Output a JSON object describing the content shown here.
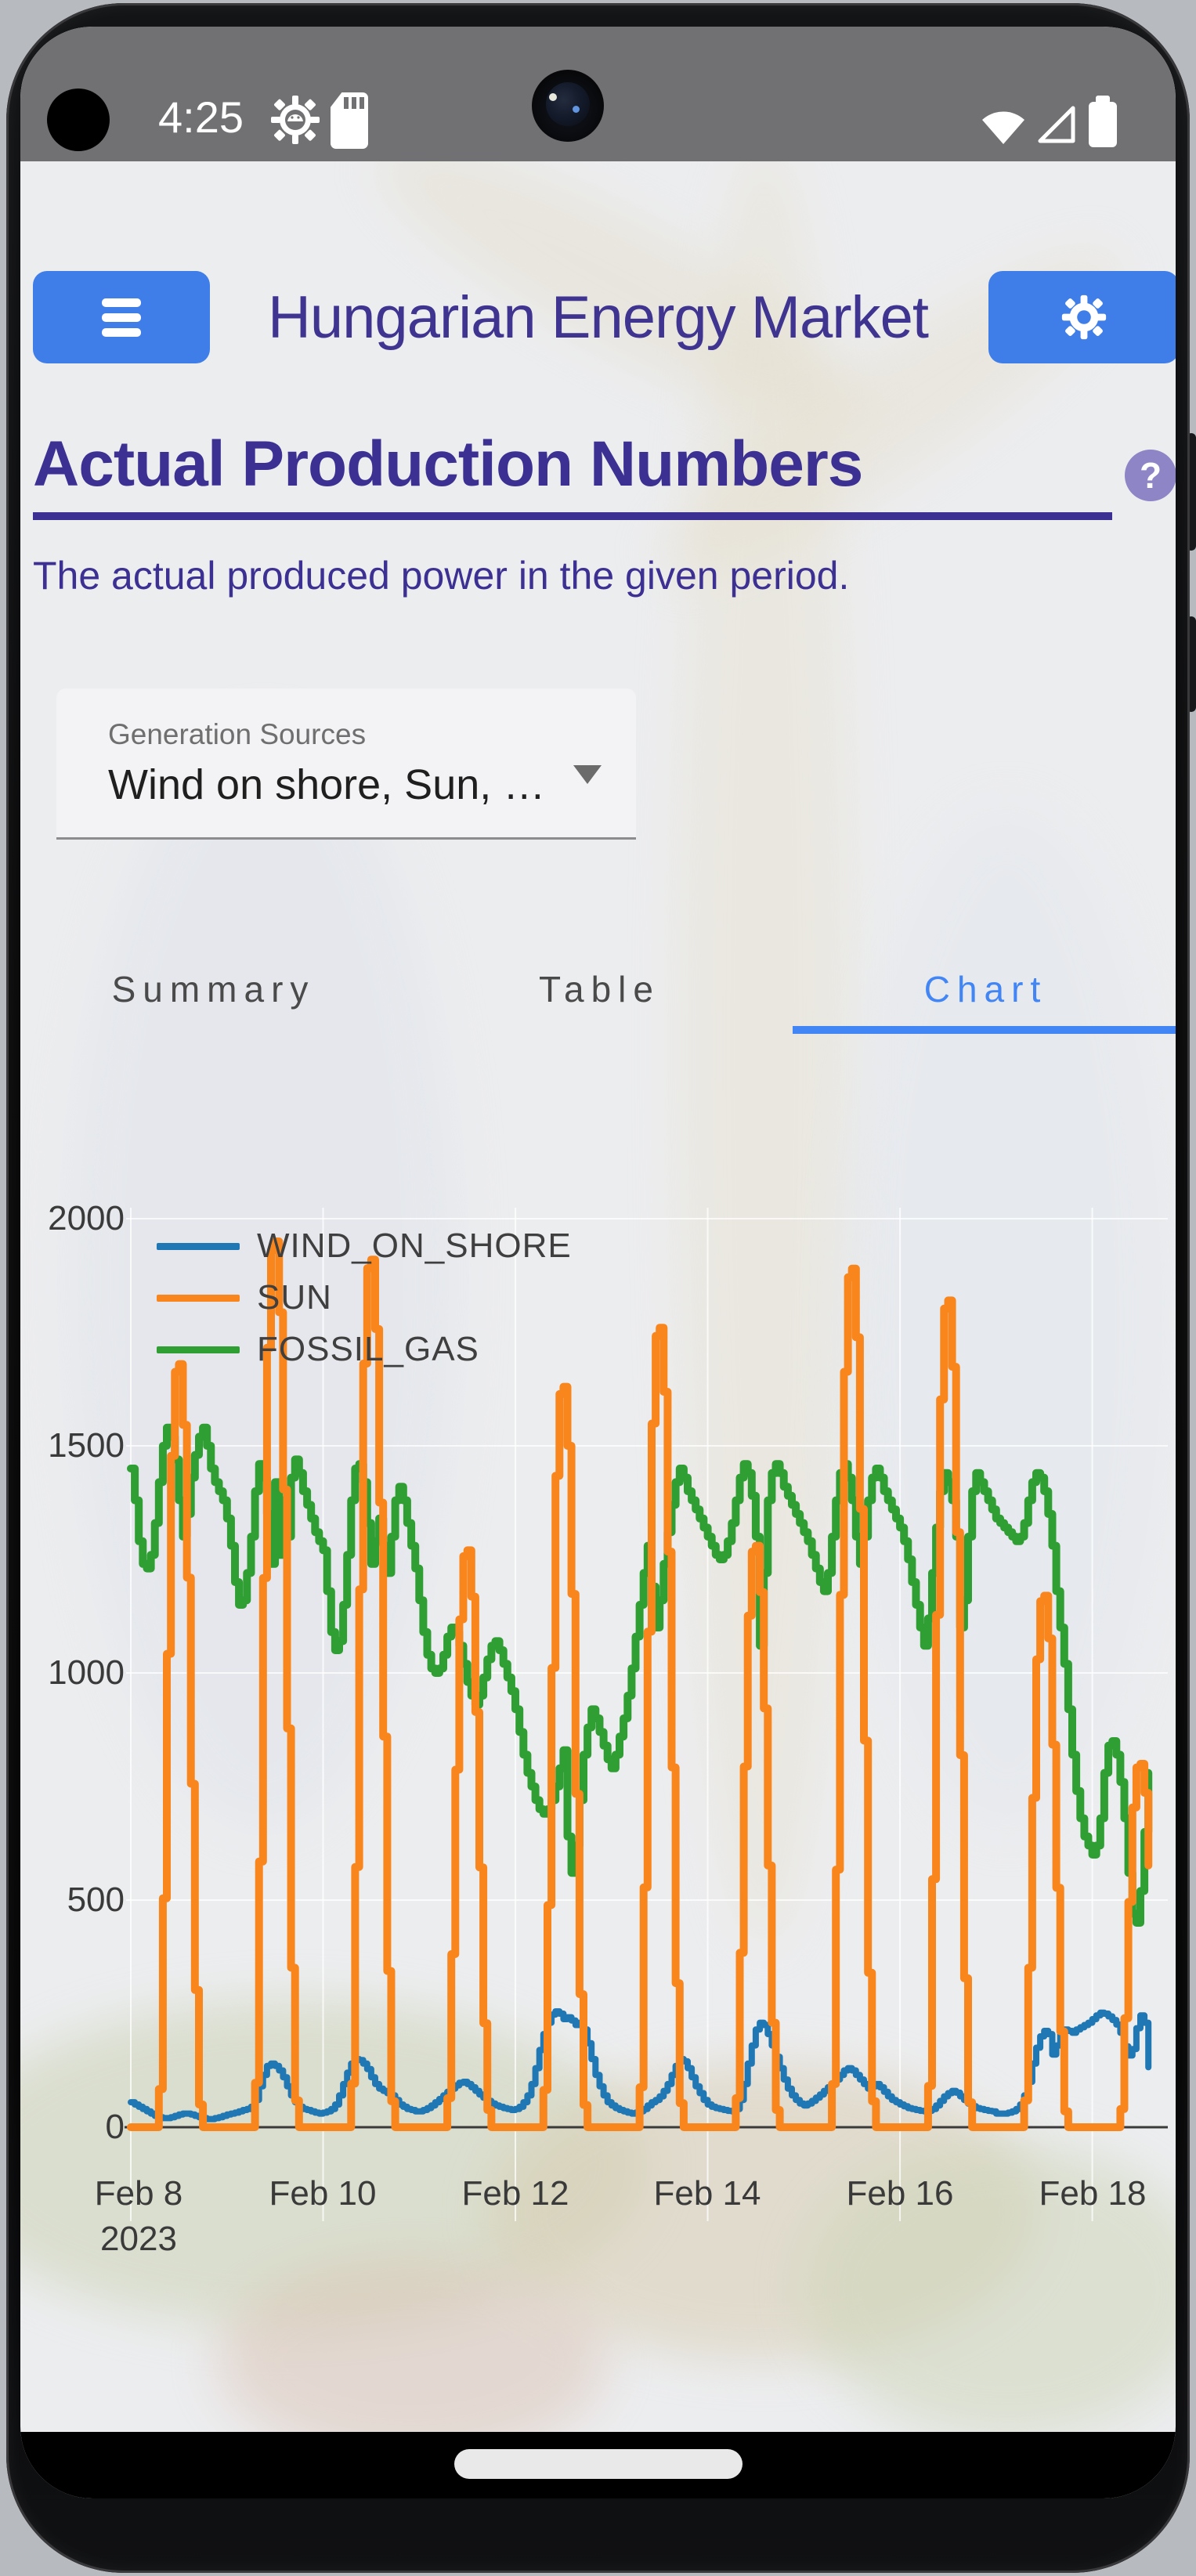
{
  "theme": {
    "button_blue": "#3F7EE8",
    "title_purple": "#3F3490",
    "heading_purple": "#3C3092",
    "tab_active": "#4285F4",
    "tab_inactive": "#4A4A4A",
    "help_badge": "#8D85C5",
    "status_bar": "#717173"
  },
  "status_bar": {
    "time": "4:25"
  },
  "header": {
    "title": "Hungarian Energy Market"
  },
  "page": {
    "heading": "Actual Production Numbers",
    "help_text": "?",
    "subtitle": "The actual produced power in the given period."
  },
  "dropdown": {
    "label": "Generation Sources",
    "value": "Wind on shore, Sun, …"
  },
  "tabs": [
    {
      "label": "Summary",
      "active": false
    },
    {
      "label": "Table",
      "active": false
    },
    {
      "label": "Chart",
      "active": true
    }
  ],
  "chart_data": {
    "type": "line",
    "title": "",
    "xlabel": "",
    "ylabel": "",
    "x_start": "Feb 8 2023 00:00",
    "x_step_hours": 1,
    "ylim": [
      0,
      2000
    ],
    "yticks": [
      0,
      500,
      1000,
      1500,
      2000
    ],
    "grid": true,
    "legend_position": "top-left",
    "x_ticks": [
      {
        "label": "Feb 8",
        "sub": "2023",
        "hour": 0
      },
      {
        "label": "Feb 10",
        "hour": 48
      },
      {
        "label": "Feb 12",
        "hour": 96
      },
      {
        "label": "Feb 14",
        "hour": 144
      },
      {
        "label": "Feb 16",
        "hour": 192
      },
      {
        "label": "Feb 18",
        "hour": 240
      }
    ],
    "series": [
      {
        "name": "WIND_ON_SHORE",
        "color": "#1F77B4",
        "values": [
          55,
          50,
          45,
          40,
          35,
          30,
          25,
          22,
          20,
          20,
          22,
          25,
          28,
          30,
          30,
          28,
          25,
          22,
          20,
          18,
          18,
          20,
          22,
          25,
          28,
          30,
          32,
          35,
          38,
          40,
          45,
          60,
          90,
          115,
          135,
          140,
          135,
          125,
          110,
          90,
          70,
          55,
          45,
          40,
          38,
          35,
          32,
          30,
          32,
          35,
          40,
          50,
          70,
          95,
          120,
          140,
          150,
          148,
          140,
          128,
          110,
          95,
          85,
          80,
          75,
          70,
          60,
          50,
          45,
          40,
          38,
          35,
          35,
          38,
          42,
          48,
          55,
          62,
          70,
          78,
          85,
          92,
          98,
          100,
          95,
          88,
          80,
          72,
          65,
          58,
          52,
          48,
          45,
          42,
          40,
          38,
          40,
          45,
          55,
          70,
          95,
          130,
          170,
          205,
          230,
          248,
          255,
          250,
          238,
          242,
          235,
          225,
          230,
          215,
          185,
          150,
          115,
          90,
          70,
          55,
          48,
          42,
          38,
          35,
          32,
          30,
          32,
          35,
          40,
          48,
          55,
          60,
          68,
          80,
          95,
          115,
          135,
          150,
          145,
          130,
          110,
          90,
          75,
          60,
          50,
          45,
          42,
          40,
          38,
          36,
          35,
          40,
          60,
          95,
          140,
          180,
          215,
          230,
          225,
          205,
          180,
          155,
          130,
          105,
          85,
          70,
          60,
          52,
          48,
          52,
          58,
          65,
          72,
          80,
          88,
          95,
          105,
          115,
          125,
          130,
          125,
          115,
          105,
          95,
          85,
          90,
          95,
          88,
          78,
          68,
          60,
          55,
          50,
          46,
          42,
          40,
          38,
          36,
          35,
          36,
          40,
          48,
          58,
          68,
          75,
          80,
          76,
          68,
          60,
          52,
          46,
          42,
          40,
          38,
          36,
          35,
          30,
          30,
          30,
          32,
          35,
          40,
          50,
          70,
          100,
          140,
          175,
          200,
          212,
          205,
          160,
          180,
          210,
          215,
          212,
          208,
          215,
          220,
          225,
          230,
          238,
          246,
          252,
          250,
          244,
          236,
          226,
          208,
          178,
          158,
          172,
          218,
          246,
          230,
          132
        ]
      },
      {
        "name": "SUN",
        "color": "#F8861D",
        "values": [
          0,
          0,
          0,
          0,
          0,
          0,
          0,
          84,
          504,
          1042,
          1478,
          1663,
          1680,
          1546,
          1210,
          756,
          302,
          50,
          0,
          0,
          0,
          0,
          0,
          0,
          0,
          0,
          0,
          0,
          0,
          0,
          0,
          98,
          585,
          1209,
          1716,
          1931,
          1950,
          1794,
          1404,
          878,
          351,
          59,
          0,
          0,
          0,
          0,
          0,
          0,
          0,
          0,
          0,
          0,
          0,
          0,
          0,
          96,
          573,
          1184,
          1681,
          1891,
          1910,
          1757,
          1375,
          860,
          344,
          57,
          0,
          0,
          0,
          0,
          0,
          0,
          0,
          0,
          0,
          0,
          0,
          0,
          0,
          64,
          381,
          787,
          1118,
          1257,
          1270,
          1168,
          914,
          572,
          229,
          38,
          0,
          0,
          0,
          0,
          0,
          0,
          0,
          0,
          0,
          0,
          0,
          0,
          0,
          82,
          489,
          1011,
          1434,
          1614,
          1630,
          1500,
          1174,
          734,
          293,
          49,
          0,
          0,
          0,
          0,
          0,
          0,
          0,
          0,
          0,
          0,
          0,
          0,
          0,
          88,
          528,
          1091,
          1549,
          1742,
          1760,
          1619,
          1267,
          792,
          317,
          53,
          0,
          0,
          0,
          0,
          0,
          0,
          0,
          0,
          0,
          0,
          0,
          0,
          0,
          64,
          384,
          794,
          1126,
          1267,
          1280,
          1178,
          922,
          576,
          230,
          38,
          0,
          0,
          0,
          0,
          0,
          0,
          0,
          0,
          0,
          0,
          0,
          0,
          0,
          95,
          567,
          1172,
          1663,
          1871,
          1890,
          1739,
          1361,
          851,
          340,
          57,
          0,
          0,
          0,
          0,
          0,
          0,
          0,
          0,
          0,
          0,
          0,
          0,
          0,
          91,
          546,
          1128,
          1602,
          1802,
          1820,
          1674,
          1310,
          819,
          328,
          55,
          0,
          0,
          0,
          0,
          0,
          0,
          0,
          0,
          0,
          0,
          0,
          0,
          0,
          59,
          351,
          725,
          1030,
          1158,
          1170,
          1076,
          842,
          527,
          211,
          35,
          0,
          0,
          0,
          0,
          0,
          0,
          0,
          0,
          0,
          0,
          0,
          0,
          0,
          40,
          240,
          496,
          704,
          792,
          800,
          736,
          576
        ]
      },
      {
        "name": "FOSSIL_GAS",
        "color": "#2F9E33",
        "values": [
          1450,
          1380,
          1290,
          1240,
          1230,
          1260,
          1330,
          1420,
          1500,
          1540,
          1520,
          1470,
          1380,
          1300,
          1350,
          1430,
          1480,
          1520,
          1540,
          1500,
          1450,
          1420,
          1400,
          1380,
          1340,
          1280,
          1200,
          1150,
          1160,
          1220,
          1300,
          1400,
          1460,
          1430,
          1350,
          1240,
          1420,
          1260,
          1380,
          1300,
          1430,
          1470,
          1440,
          1400,
          1370,
          1340,
          1310,
          1290,
          1270,
          1180,
          1090,
          1050,
          1070,
          1150,
          1260,
          1380,
          1450,
          1460,
          1420,
          1330,
          1240,
          1290,
          1340,
          1280,
          1220,
          1300,
          1380,
          1410,
          1380,
          1330,
          1280,
          1230,
          1160,
          1090,
          1040,
          1010,
          1000,
          1010,
          1040,
          1080,
          1100,
          1090,
          1060,
          1020,
          980,
          950,
          930,
          950,
          990,
          1030,
          1060,
          1070,
          1050,
          1020,
          990,
          960,
          920,
          870,
          820,
          780,
          750,
          720,
          700,
          690,
          700,
          720,
          750,
          790,
          830,
          640,
          560,
          620,
          720,
          820,
          880,
          920,
          900,
          870,
          840,
          810,
          790,
          820,
          860,
          900,
          950,
          1010,
          1080,
          1150,
          1220,
          1280,
          1190,
          1100,
          1160,
          1240,
          1310,
          1370,
          1420,
          1450,
          1430,
          1400,
          1380,
          1360,
          1340,
          1320,
          1300,
          1280,
          1260,
          1250,
          1260,
          1290,
          1330,
          1380,
          1430,
          1460,
          1440,
          1390,
          1300,
          1060,
          1220,
          1380,
          1440,
          1460,
          1440,
          1410,
          1390,
          1370,
          1350,
          1330,
          1310,
          1290,
          1260,
          1230,
          1200,
          1180,
          1220,
          1300,
          1380,
          1440,
          1460,
          1430,
          1380,
          1300,
          1240,
          1300,
          1380,
          1430,
          1450,
          1430,
          1400,
          1380,
          1360,
          1340,
          1320,
          1290,
          1250,
          1200,
          1150,
          1100,
          1060,
          1120,
          1220,
          1320,
          1400,
          1440,
          1420,
          1380,
          1300,
          1100,
          1160,
          1300,
          1400,
          1440,
          1420,
          1400,
          1380,
          1360,
          1340,
          1330,
          1320,
          1310,
          1300,
          1290,
          1300,
          1330,
          1380,
          1420,
          1440,
          1430,
          1400,
          1350,
          1280,
          1180,
          1100,
          1020,
          920,
          820,
          740,
          680,
          640,
          620,
          600,
          620,
          680,
          780,
          840,
          850,
          820,
          760,
          680,
          560,
          470,
          450,
          520,
          650,
          780
        ]
      }
    ]
  }
}
